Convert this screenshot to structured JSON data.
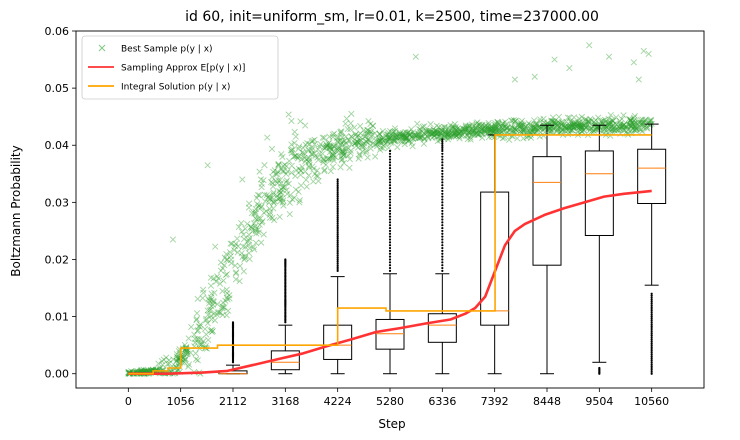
{
  "chart_data": {
    "type": "line",
    "title": "id 60, init=uniform_sm, lr=0.01, k=2500, time=237000.00",
    "xlabel": "Step",
    "ylabel": "Boltzmann Probability",
    "xlim": [
      -1056,
      11616
    ],
    "ylim": [
      -0.0025,
      0.06
    ],
    "x_ticks": [
      0,
      1056,
      2112,
      3168,
      4224,
      5280,
      6336,
      7392,
      8448,
      9504,
      10560
    ],
    "x_tick_labels": [
      "0",
      "1056",
      "2112",
      "3168",
      "4224",
      "5280",
      "6336",
      "7392",
      "8448",
      "9504",
      "10560"
    ],
    "y_ticks": [
      0.0,
      0.01,
      0.02,
      0.03,
      0.04,
      0.05,
      0.06
    ],
    "y_tick_labels": [
      "0.00",
      "0.01",
      "0.02",
      "0.03",
      "0.04",
      "0.05",
      "0.06"
    ],
    "legend_position": "top-left",
    "legend": [
      {
        "label": "Best Sample p(y | x)",
        "marker": "x",
        "color": "#2ca02c"
      },
      {
        "label": "Sampling Approx E[p(y | x)]",
        "marker": "line",
        "color": "#ff3333"
      },
      {
        "label": "Integral Solution p(y | x)",
        "marker": "line",
        "color": "#ffa500"
      }
    ],
    "series": [
      {
        "name": "Best Sample p(y | x)",
        "kind": "scatter",
        "color": "#2ca02c",
        "trend": [
          [
            0,
            0.0
          ],
          [
            600,
            0.0005
          ],
          [
            1000,
            0.002
          ],
          [
            1500,
            0.008
          ],
          [
            2000,
            0.017
          ],
          [
            2500,
            0.026
          ],
          [
            3000,
            0.033
          ],
          [
            3500,
            0.037
          ],
          [
            4000,
            0.039
          ],
          [
            5000,
            0.041
          ],
          [
            6000,
            0.042
          ],
          [
            7000,
            0.0425
          ],
          [
            8000,
            0.043
          ],
          [
            9000,
            0.0433
          ],
          [
            10560,
            0.0435
          ]
        ],
        "outliers": [
          [
            900,
            0.0235
          ],
          [
            1600,
            0.0365
          ],
          [
            2300,
            0.034
          ],
          [
            4500,
            0.0455
          ],
          [
            5800,
            0.0555
          ],
          [
            8200,
            0.052
          ],
          [
            8600,
            0.055
          ],
          [
            8900,
            0.0535
          ],
          [
            9300,
            0.0575
          ],
          [
            9700,
            0.0555
          ],
          [
            10200,
            0.0545
          ],
          [
            10400,
            0.0565
          ],
          [
            10500,
            0.056
          ],
          [
            10300,
            0.0515
          ],
          [
            7800,
            0.0515
          ]
        ]
      },
      {
        "name": "Sampling Approx E[p(y | x)]",
        "kind": "line",
        "color": "#ff3333",
        "points": [
          [
            0,
            0.0
          ],
          [
            800,
            0.0
          ],
          [
            1500,
            0.0002
          ],
          [
            2000,
            0.0005
          ],
          [
            2500,
            0.0015
          ],
          [
            3000,
            0.0025
          ],
          [
            3500,
            0.0035
          ],
          [
            4000,
            0.0048
          ],
          [
            4500,
            0.006
          ],
          [
            5000,
            0.0073
          ],
          [
            5500,
            0.008
          ],
          [
            6000,
            0.0088
          ],
          [
            6500,
            0.0095
          ],
          [
            6800,
            0.0105
          ],
          [
            7000,
            0.0115
          ],
          [
            7200,
            0.0135
          ],
          [
            7400,
            0.018
          ],
          [
            7600,
            0.0225
          ],
          [
            7800,
            0.025
          ],
          [
            8000,
            0.0262
          ],
          [
            8400,
            0.0278
          ],
          [
            8800,
            0.029
          ],
          [
            9200,
            0.03
          ],
          [
            9600,
            0.031
          ],
          [
            10000,
            0.0315
          ],
          [
            10560,
            0.032
          ]
        ]
      },
      {
        "name": "Integral Solution p(y | x)",
        "kind": "step",
        "color": "#ffa500",
        "points": [
          [
            0,
            0.0
          ],
          [
            500,
            0.0005
          ],
          [
            800,
            0.001
          ],
          [
            1056,
            0.0045
          ],
          [
            1600,
            0.0045
          ],
          [
            1800,
            0.005
          ],
          [
            3600,
            0.005
          ],
          [
            4224,
            0.0115
          ],
          [
            5200,
            0.011
          ],
          [
            7392,
            0.011
          ],
          [
            7400,
            0.0418
          ],
          [
            10560,
            0.0418
          ]
        ]
      }
    ],
    "boxes": [
      {
        "x": 2112,
        "q1": 0.0,
        "median": 0.0,
        "q3": 0.0005,
        "whisker_low": 0.0,
        "whisker_high": 0.0015,
        "fliers": [
          0.002,
          0.003,
          0.004,
          0.005,
          0.006,
          0.007,
          0.008,
          0.009
        ]
      },
      {
        "x": 3168,
        "q1": 0.0007,
        "median": 0.002,
        "q3": 0.004,
        "whisker_low": 0.0,
        "whisker_high": 0.0085,
        "fliers": [
          0.009,
          0.0105,
          0.012,
          0.013,
          0.0145,
          0.016,
          0.0175,
          0.019,
          0.02
        ]
      },
      {
        "x": 4224,
        "q1": 0.0025,
        "median": 0.005,
        "q3": 0.0085,
        "whisker_low": 0.0,
        "whisker_high": 0.017,
        "fliers": [
          0.018,
          0.02,
          0.022,
          0.024,
          0.026,
          0.028,
          0.03,
          0.032,
          0.034
        ]
      },
      {
        "x": 5280,
        "q1": 0.0043,
        "median": 0.007,
        "q3": 0.0095,
        "whisker_low": 0.0,
        "whisker_high": 0.0175,
        "fliers": [
          0.018,
          0.021,
          0.024,
          0.027,
          0.03,
          0.033,
          0.036,
          0.039
        ]
      },
      {
        "x": 6336,
        "q1": 0.0055,
        "median": 0.0085,
        "q3": 0.0105,
        "whisker_low": 0.0,
        "whisker_high": 0.0175,
        "fliers": [
          0.018,
          0.021,
          0.024,
          0.027,
          0.03,
          0.033,
          0.036,
          0.039,
          0.041
        ]
      },
      {
        "x": 7392,
        "q1": 0.0085,
        "median": 0.011,
        "q3": 0.0318,
        "whisker_low": 0.0,
        "whisker_high": 0.0418,
        "fliers": []
      },
      {
        "x": 8448,
        "q1": 0.019,
        "median": 0.0335,
        "q3": 0.038,
        "whisker_low": 0.0,
        "whisker_high": 0.0435,
        "fliers": []
      },
      {
        "x": 9504,
        "q1": 0.0242,
        "median": 0.035,
        "q3": 0.039,
        "whisker_low": 0.002,
        "whisker_high": 0.0435,
        "fliers": [
          0.0,
          0.001
        ]
      },
      {
        "x": 10560,
        "q1": 0.0298,
        "median": 0.036,
        "q3": 0.0393,
        "whisker_low": 0.0155,
        "whisker_high": 0.0437,
        "fliers": [
          0.0,
          0.002,
          0.004,
          0.006,
          0.008,
          0.01,
          0.012,
          0.014
        ]
      }
    ],
    "grid": false
  }
}
